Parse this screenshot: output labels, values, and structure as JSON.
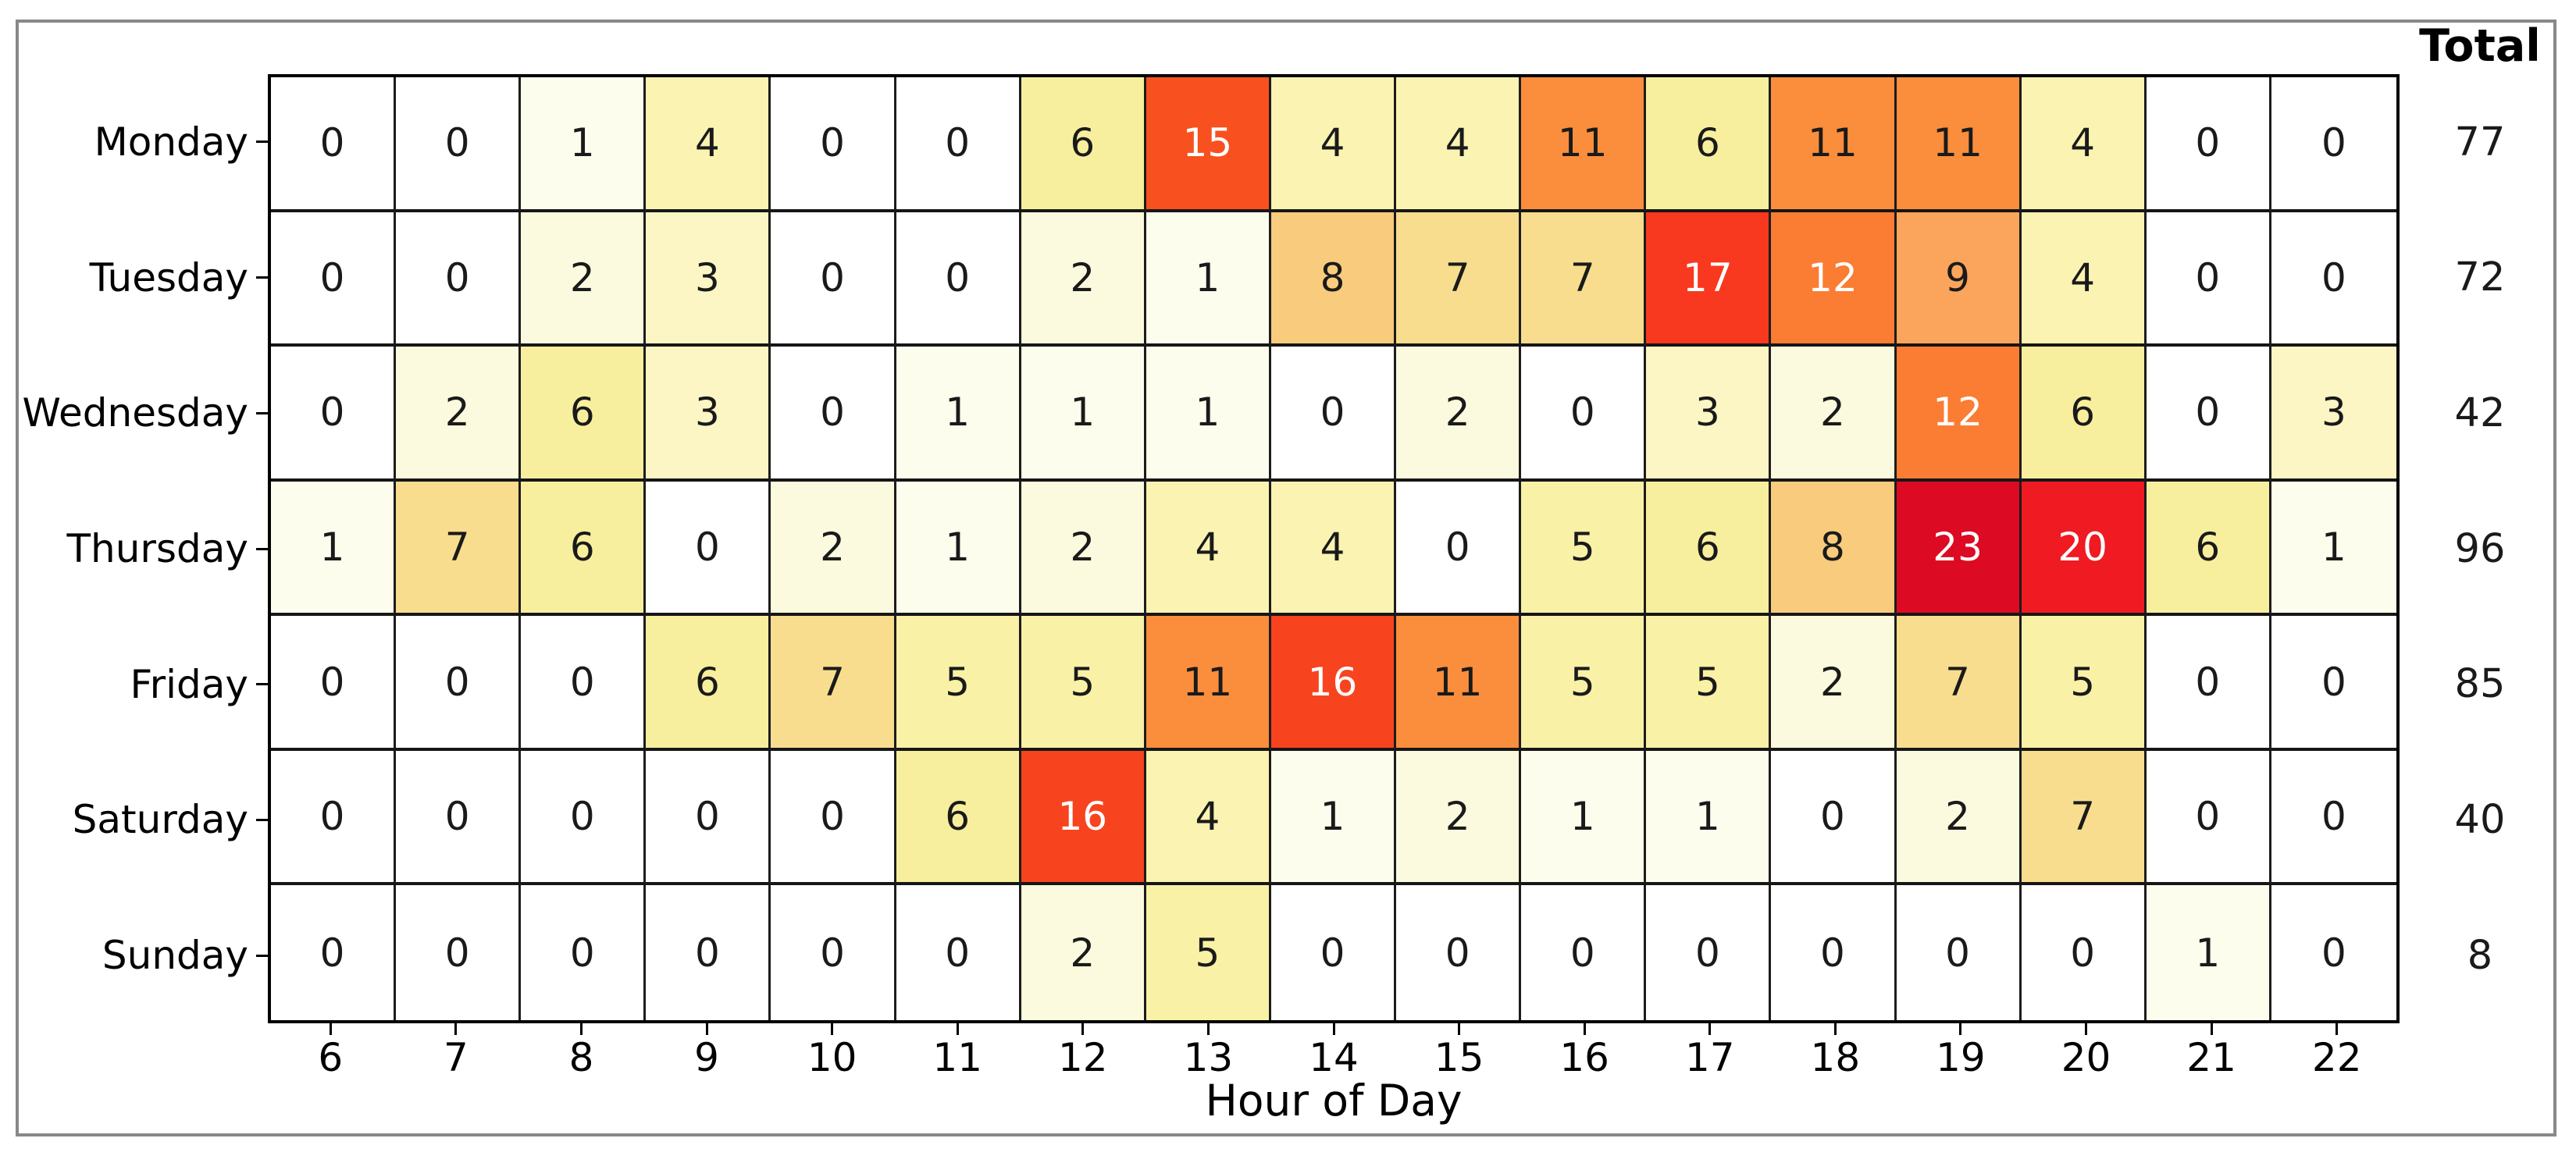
{
  "chart_data": {
    "type": "heatmap",
    "title": "",
    "xlabel": "Hour of Day",
    "total_label": "Total",
    "days": [
      "Monday",
      "Tuesday",
      "Wednesday",
      "Thursday",
      "Friday",
      "Saturday",
      "Sunday"
    ],
    "hours": [
      "6",
      "7",
      "8",
      "9",
      "10",
      "11",
      "12",
      "13",
      "14",
      "15",
      "16",
      "17",
      "18",
      "19",
      "20",
      "21",
      "22"
    ],
    "values": [
      [
        0,
        0,
        1,
        4,
        0,
        0,
        6,
        15,
        4,
        4,
        11,
        6,
        11,
        11,
        4,
        0,
        0
      ],
      [
        0,
        0,
        2,
        3,
        0,
        0,
        2,
        1,
        8,
        7,
        7,
        17,
        12,
        9,
        4,
        0,
        0
      ],
      [
        0,
        2,
        6,
        3,
        0,
        1,
        1,
        1,
        0,
        2,
        0,
        3,
        2,
        12,
        6,
        0,
        3
      ],
      [
        1,
        7,
        6,
        0,
        2,
        1,
        2,
        4,
        4,
        0,
        5,
        6,
        8,
        23,
        20,
        6,
        1
      ],
      [
        0,
        0,
        0,
        6,
        7,
        5,
        5,
        11,
        16,
        11,
        5,
        5,
        2,
        7,
        5,
        0,
        0
      ],
      [
        0,
        0,
        0,
        0,
        0,
        6,
        16,
        4,
        1,
        2,
        1,
        1,
        0,
        2,
        7,
        0,
        0
      ],
      [
        0,
        0,
        0,
        0,
        0,
        0,
        2,
        5,
        0,
        0,
        0,
        0,
        0,
        0,
        0,
        1,
        0
      ]
    ],
    "totals": [
      77,
      72,
      42,
      96,
      85,
      40,
      8
    ],
    "value_range": [
      0,
      23
    ],
    "grid_on": true,
    "color_map": {
      "0": "#ffffff",
      "1": "#fdfdee",
      "2": "#fcfade",
      "3": "#fbf6c4",
      "4": "#faf3b2",
      "5": "#f9f1a6",
      "6": "#f8ef9e",
      "7": "#f9dd8e",
      "8": "#f9cb7c",
      "9": "#fba45c",
      "11": "#fa8e3c",
      "12": "#fa7d33",
      "15": "#f8511f",
      "16": "#f8431f",
      "17": "#f8391f",
      "20": "#ef1a22",
      "23": "#dc0a22"
    },
    "white_text_min": 12,
    "colors": {
      "frame_border": "#888888",
      "grid_outer_border": "#000000",
      "grid_line": "#1c1c1c",
      "cell_text_dark": "#1a1a1a",
      "cell_text_light": "#ffffff",
      "label_text": "#000000"
    }
  }
}
